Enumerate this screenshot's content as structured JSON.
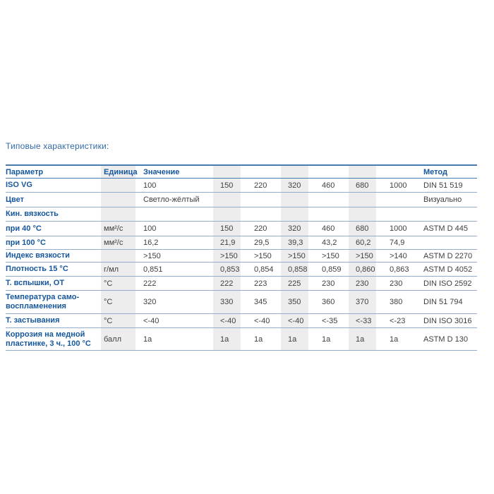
{
  "title": "Типовые характеристики:",
  "colors": {
    "accent_blue": "#15569c",
    "title_blue": "#336ba6",
    "value_text": "#3f3f41",
    "stripe_gray": "#ededee",
    "border_strong": "#4a7bb0",
    "border_light": "#93aecb"
  },
  "table": {
    "headers": {
      "param": "Параметр",
      "unit": "Единица",
      "value": "Значение",
      "method": "Метод"
    },
    "rows": [
      {
        "param": "ISO VG",
        "unit": "",
        "values": [
          "100",
          "150",
          "220",
          "320",
          "460",
          "680",
          "1000"
        ],
        "method": "DIN 51 519"
      },
      {
        "param": "Цвет",
        "unit": "",
        "values": [
          "Светло-жёлтый",
          "",
          "",
          "",
          "",
          "",
          ""
        ],
        "method": "Визуально"
      },
      {
        "param": "Кин. вязкость",
        "unit": "",
        "values": [
          "",
          "",
          "",
          "",
          "",
          "",
          ""
        ],
        "method": ""
      },
      {
        "param": "при 40 °C",
        "unit": "мм²/с",
        "values": [
          "100",
          "150",
          "220",
          "320",
          "460",
          "680",
          "1000"
        ],
        "method": "ASTM D 445"
      },
      {
        "param": "при 100 °C",
        "unit": "мм²/с",
        "values": [
          "16,2",
          "21,9",
          "29,5",
          "39,3",
          "43,2",
          "60,2",
          "74,9"
        ],
        "method": ""
      },
      {
        "param": "Индекс вязкости",
        "unit": "",
        "values": [
          ">150",
          ">150",
          ">150",
          ">150",
          ">150",
          ">150",
          ">140"
        ],
        "method": "ASTM D 2270"
      },
      {
        "param": "Плотность 15 °C",
        "unit": "г/мл",
        "values": [
          "0,851",
          "0,853",
          "0,854",
          "0,858",
          "0,859",
          "0,860",
          "0,863"
        ],
        "method": "ASTM D 4052"
      },
      {
        "param": "Т. вспышки, ОТ",
        "unit": "°C",
        "values": [
          "222",
          "222",
          "223",
          "225",
          "230",
          "230",
          "230"
        ],
        "method": "DIN ISO 2592"
      },
      {
        "param": "Температура само-\nвоспламенения",
        "unit": "°C",
        "values": [
          "320",
          "330",
          "345",
          "350",
          "360",
          "370",
          "380"
        ],
        "method": "DIN 51 794"
      },
      {
        "param": "Т. застывания",
        "unit": "°C",
        "values": [
          "<-40",
          "<-40",
          "<-40",
          "<-40",
          "<-35",
          "<-33",
          "<-23"
        ],
        "method": "DIN ISO 3016"
      },
      {
        "param": "Коррозия на медной\nпластинке, 3 ч., 100 °C",
        "unit": "балл",
        "values": [
          "1a",
          "1a",
          "1a",
          "1a",
          "1a",
          "1a",
          "1a"
        ],
        "method": "ASTM D 130"
      }
    ]
  }
}
